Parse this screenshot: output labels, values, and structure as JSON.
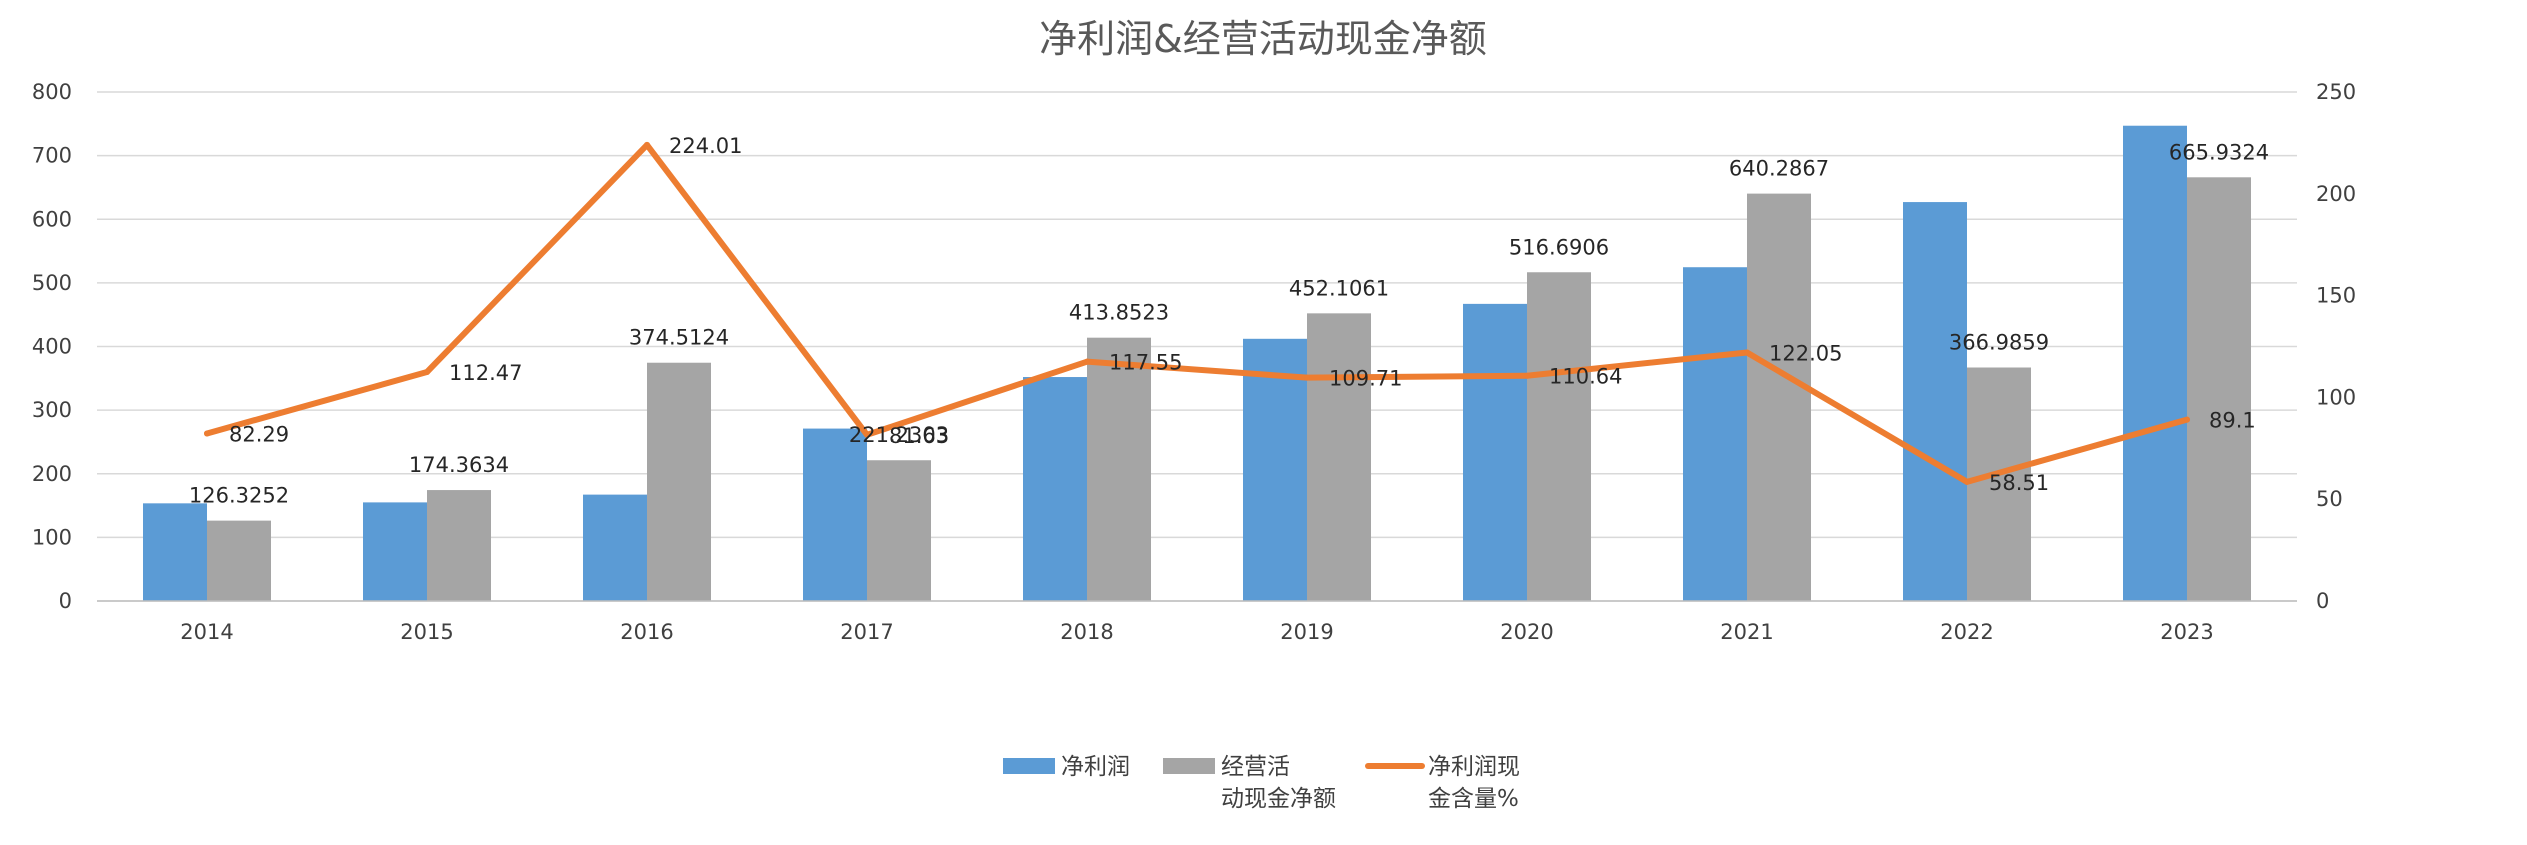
{
  "chart_data": {
    "type": "bar",
    "title": "净利润&经营活动现金净额",
    "categories": [
      "2014",
      "2015",
      "2016",
      "2017",
      "2018",
      "2019",
      "2020",
      "2021",
      "2022",
      "2023"
    ],
    "series": [
      {
        "name": "净利润",
        "type": "bar",
        "axis": "left",
        "color": "#5B9BD5",
        "values": [
          153.5,
          155.0,
          167.2,
          271.0,
          352.0,
          412.1,
          467.0,
          524.6,
          627.0,
          747.0
        ],
        "labels": []
      },
      {
        "name": "经营活动现金净额",
        "legend_lines": [
          "经营活",
          "动现金净额"
        ],
        "type": "bar",
        "axis": "left",
        "color": "#A5A5A5",
        "values": [
          126.3252,
          174.3634,
          374.5124,
          221.2303,
          413.8523,
          452.1061,
          516.6906,
          640.2867,
          366.9859,
          665.9324
        ],
        "labels": [
          "126.3252",
          "174.3634",
          "374.5124",
          "221.2303",
          "413.8523",
          "452.1061",
          "516.6906",
          "640.2867",
          "366.9859",
          "665.9324"
        ]
      },
      {
        "name": "净利润现金含量%",
        "legend_lines": [
          "净利润现",
          "金含量%"
        ],
        "type": "line",
        "axis": "right",
        "color": "#ED7D31",
        "values": [
          82.29,
          112.47,
          224.01,
          81.63,
          117.55,
          109.71,
          110.64,
          122.05,
          58.51,
          89.1
        ],
        "labels": [
          "82.29",
          "112.47",
          "224.01",
          "81.63",
          "117.55",
          "109.71",
          "110.64",
          "122.05",
          "58.51",
          "89.1"
        ]
      }
    ],
    "y_left": {
      "min": 0,
      "max": 800,
      "ticks": [
        "0",
        "100",
        "200",
        "300",
        "400",
        "500",
        "600",
        "700",
        "800"
      ]
    },
    "y_right": {
      "min": 0,
      "max": 250,
      "ticks": [
        "0",
        "50",
        "100",
        "150",
        "200",
        "250"
      ]
    },
    "grid": true,
    "legend": "bottom"
  }
}
